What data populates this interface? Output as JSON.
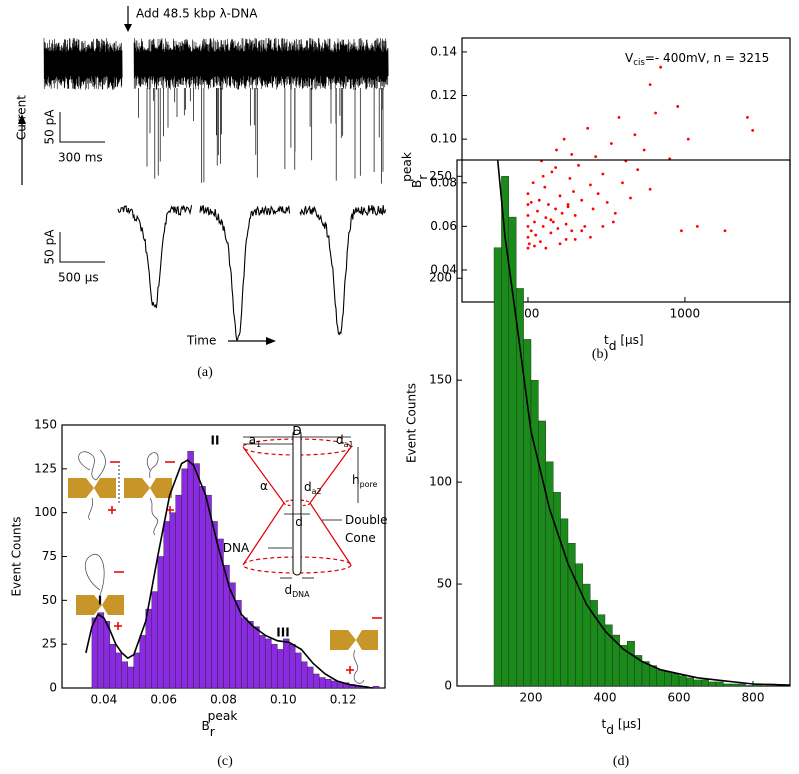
{
  "chart_data": [
    {
      "type": "trace",
      "annotation": "Add 48.5 kbp λ-DNA",
      "ylabel": "Current",
      "xlabel": "Time",
      "scale_bars": [
        {
          "y": "50 pA",
          "x": "300 ms"
        },
        {
          "y": "50 pA",
          "x": "500 µs"
        }
      ],
      "caption": "(a)"
    },
    {
      "type": "scatter",
      "caption": "(b)",
      "color": "#ff0000",
      "log_x": true,
      "annotation": {
        "text": "V",
        "sub": "cis",
        "tail": "=- 400mV, n = 3215"
      },
      "xlabel": {
        "text": "t",
        "sub": "d",
        "tail": " [µs]"
      },
      "ylabel": {
        "text": "B",
        "sub": "r",
        "sup": "peak"
      },
      "xlim": [
        38,
        4670
      ],
      "xticks": [
        100,
        1000
      ],
      "ylim": [
        0.0253,
        0.1464
      ],
      "yticks": [
        0.04,
        0.06,
        0.08,
        {
          "value": 0.1,
          "label": "0.10"
        },
        0.12,
        0.14
      ],
      "x": [
        100,
        100,
        100,
        100,
        100,
        100,
        102,
        105,
        108,
        110,
        112,
        115,
        118,
        120,
        122,
        125,
        128,
        130,
        135,
        140,
        142,
        145,
        150,
        152,
        155,
        160,
        165,
        170,
        175,
        180,
        185,
        190,
        195,
        200,
        210,
        220,
        230,
        240,
        250,
        260,
        270,
        280,
        300,
        320,
        340,
        360,
        380,
        400,
        420,
        450,
        480,
        500,
        550,
        600,
        650,
        700,
        800,
        900,
        950,
        1050,
        1200,
        1800,
        2500,
        2700,
        110,
        130,
        160,
        200,
        250,
        300,
        140,
        180,
        220,
        105,
        125,
        150,
        175,
        190,
        350,
        600
      ],
      "y": [
        0.05,
        0.055,
        0.06,
        0.065,
        0.07,
        0.075,
        0.052,
        0.058,
        0.08,
        0.062,
        0.056,
        0.067,
        0.072,
        0.053,
        0.09,
        0.06,
        0.078,
        0.064,
        0.07,
        0.057,
        0.085,
        0.062,
        0.068,
        0.095,
        0.059,
        0.074,
        0.066,
        0.1,
        0.061,
        0.07,
        0.082,
        0.058,
        0.076,
        0.065,
        0.088,
        0.072,
        0.06,
        0.105,
        0.079,
        0.068,
        0.092,
        0.075,
        0.084,
        0.071,
        0.098,
        0.066,
        0.11,
        0.08,
        0.09,
        0.073,
        0.102,
        0.086,
        0.095,
        0.077,
        0.112,
        0.133,
        0.091,
        0.115,
        0.058,
        0.1,
        0.06,
        0.058,
        0.11,
        0.104,
        0.051,
        0.05,
        0.052,
        0.054,
        0.055,
        0.06,
        0.063,
        0.069,
        0.058,
        0.071,
        0.083,
        0.087,
        0.054,
        0.093,
        0.062,
        0.125
      ]
    },
    {
      "type": "histogram",
      "caption": "(c)",
      "color": "#8a2be2",
      "ylabel": "Event Counts",
      "xlabel": {
        "text": "B",
        "sub": "r",
        "sup": "peak"
      },
      "xlim": [
        0.026,
        0.134
      ],
      "xticks": [
        0.04,
        0.06,
        0.08,
        {
          "value": 0.1,
          "label": "0.10"
        },
        0.12
      ],
      "ylim": [
        0,
        150
      ],
      "yticks": [
        0,
        25,
        50,
        75,
        100,
        125,
        150
      ],
      "bins": [
        0.036,
        0.038,
        0.04,
        0.042,
        0.044,
        0.046,
        0.048,
        0.05,
        0.052,
        0.054,
        0.056,
        0.058,
        0.06,
        0.062,
        0.064,
        0.066,
        0.068,
        0.07,
        0.072,
        0.074,
        0.076,
        0.078,
        0.08,
        0.082,
        0.084,
        0.086,
        0.088,
        0.09,
        0.092,
        0.094,
        0.096,
        0.098,
        0.1,
        0.102,
        0.104,
        0.106,
        0.108,
        0.11,
        0.112,
        0.114,
        0.116,
        0.118,
        0.12,
        0.122,
        0.124,
        0.126,
        0.128,
        0.13,
        0.132
      ],
      "counts": [
        40,
        43,
        38,
        25,
        20,
        15,
        12,
        20,
        30,
        45,
        55,
        75,
        95,
        100,
        110,
        125,
        135,
        128,
        115,
        110,
        95,
        85,
        70,
        60,
        50,
        40,
        38,
        35,
        30,
        28,
        25,
        22,
        28,
        25,
        20,
        15,
        12,
        8,
        6,
        5,
        4,
        3,
        3,
        2,
        1,
        1,
        0,
        1
      ],
      "fit": {
        "color": "#000000",
        "x": [
          0.034,
          0.036,
          0.038,
          0.04,
          0.042,
          0.044,
          0.046,
          0.048,
          0.05,
          0.054,
          0.058,
          0.062,
          0.066,
          0.068,
          0.07,
          0.074,
          0.078,
          0.082,
          0.086,
          0.09,
          0.094,
          0.098,
          0.102,
          0.106,
          0.11,
          0.114,
          0.118,
          0.122,
          0.126,
          0.13
        ],
        "y": [
          20,
          35,
          42,
          40,
          33,
          25,
          20,
          17,
          19,
          38,
          75,
          110,
          128,
          130,
          127,
          110,
          82,
          57,
          42,
          35,
          30,
          27,
          26,
          22,
          14,
          8,
          4,
          2,
          1,
          0
        ]
      },
      "peak_labels": [
        "I",
        "II",
        "III"
      ],
      "inset_labels": [
        {
          "text": "D"
        },
        {
          "text": "a",
          "sub": "1"
        },
        {
          "text": "d",
          "sub": "a1"
        },
        {
          "text": "α"
        },
        {
          "text": "d",
          "sub": "a2"
        },
        {
          "text": "h",
          "sub": "pore"
        },
        {
          "text": "d"
        },
        {
          "text": "Double"
        },
        {
          "text": "Cone"
        },
        {
          "text": "DNA"
        },
        {
          "text": "d",
          "sub": "DNA"
        }
      ]
    },
    {
      "type": "histogram",
      "caption": "(d)",
      "color": "#1a8a1a",
      "ylabel": "Event Counts",
      "xlabel": {
        "text": "t",
        "sub": "d",
        "tail": " [µs]"
      },
      "xlim": [
        0,
        900
      ],
      "xticks": [
        200,
        400,
        600,
        800
      ],
      "ylim": [
        0,
        258
      ],
      "yticks": [
        0,
        50,
        100,
        150,
        200,
        250
      ],
      "bins": [
        100,
        120,
        140,
        160,
        180,
        200,
        220,
        240,
        260,
        280,
        300,
        320,
        340,
        360,
        380,
        400,
        420,
        440,
        460,
        480,
        500,
        520,
        540,
        560,
        580,
        600,
        620,
        640,
        660,
        680,
        700,
        720,
        740,
        760,
        780,
        800,
        820,
        840,
        860,
        880
      ],
      "counts": [
        215,
        250,
        230,
        195,
        170,
        150,
        130,
        110,
        95,
        82,
        70,
        60,
        50,
        42,
        35,
        30,
        25,
        20,
        22,
        15,
        12,
        10,
        8,
        7,
        6,
        5,
        4,
        3,
        3,
        2,
        2,
        1,
        1,
        1,
        0,
        1,
        0,
        1,
        0
      ],
      "fit": {
        "color": "#000000",
        "x": [
          110,
          130,
          160,
          200,
          250,
          300,
          350,
          400,
          450,
          500,
          550,
          600,
          650,
          700,
          800,
          900
        ],
        "y": [
          258,
          220,
          180,
          125,
          87,
          60,
          40,
          27,
          18,
          12,
          8,
          6,
          4,
          3,
          1,
          0.5
        ]
      }
    }
  ]
}
